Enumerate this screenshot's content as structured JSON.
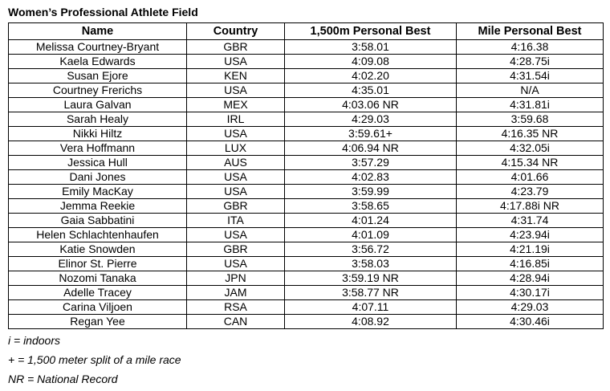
{
  "title": "Women’s Professional Athlete Field",
  "columns": [
    "Name",
    "Country",
    "1,500m Personal Best",
    "Mile Personal Best"
  ],
  "rows": [
    [
      "Melissa Courtney-Bryant",
      "GBR",
      "3:58.01",
      "4:16.38"
    ],
    [
      "Kaela Edwards",
      "USA",
      "4:09.08",
      "4:28.75i"
    ],
    [
      "Susan Ejore",
      "KEN",
      "4:02.20",
      "4:31.54i"
    ],
    [
      "Courtney Frerichs",
      "USA",
      "4:35.01",
      "N/A"
    ],
    [
      "Laura Galvan",
      "MEX",
      "4:03.06 NR",
      "4:31.81i"
    ],
    [
      "Sarah Healy",
      "IRL",
      "4:29.03",
      "3:59.68"
    ],
    [
      "Nikki Hiltz",
      "USA",
      "3:59.61+",
      "4:16.35 NR"
    ],
    [
      "Vera Hoffmann",
      "LUX",
      "4:06.94 NR",
      "4:32.05i"
    ],
    [
      "Jessica Hull",
      "AUS",
      "3:57.29",
      "4:15.34 NR"
    ],
    [
      "Dani Jones",
      "USA",
      "4:02.83",
      "4:01.66"
    ],
    [
      "Emily MacKay",
      "USA",
      "3:59.99",
      "4:23.79"
    ],
    [
      "Jemma Reekie",
      "GBR",
      "3:58.65",
      "4:17.88i NR"
    ],
    [
      "Gaia Sabbatini",
      "ITA",
      "4:01.24",
      "4:31.74"
    ],
    [
      "Helen Schlachtenhaufen",
      "USA",
      "4:01.09",
      "4:23.94i"
    ],
    [
      "Katie Snowden",
      "GBR",
      "3:56.72",
      "4:21.19i"
    ],
    [
      "Elinor St. Pierre",
      "USA",
      "3:58.03",
      "4:16.85i"
    ],
    [
      "Nozomi Tanaka",
      "JPN",
      "3:59.19 NR",
      "4:28.94i"
    ],
    [
      "Adelle Tracey",
      "JAM",
      "3:58.77 NR",
      "4:30.17i"
    ],
    [
      "Carina Viljoen",
      "RSA",
      "4:07.11",
      "4:29.03"
    ],
    [
      "Regan Yee",
      "CAN",
      "4:08.92",
      "4:30.46i"
    ]
  ],
  "notes": [
    "i = indoors",
    "+ = 1,500 meter split of a mile race",
    "NR = National Record"
  ]
}
